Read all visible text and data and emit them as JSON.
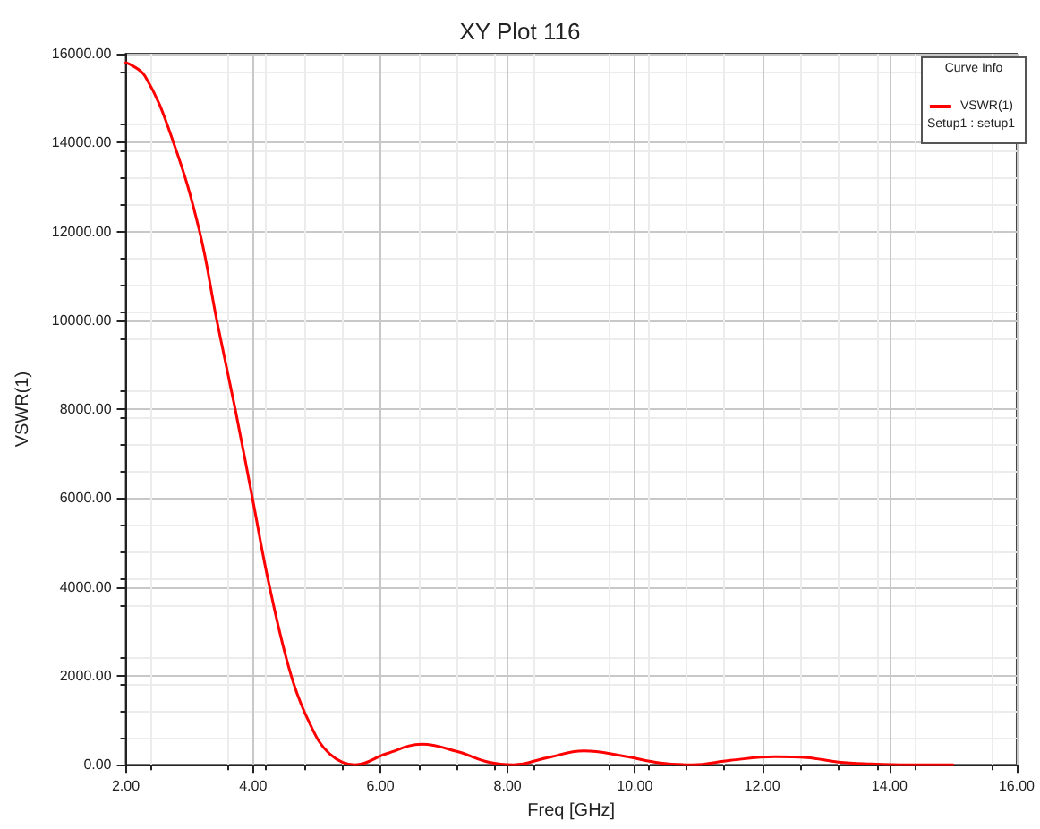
{
  "chart_data": {
    "type": "line",
    "title": "XY Plot 116",
    "xlabel": "Freq [GHz]",
    "ylabel": "VSWR(1)",
    "legend_title": "Curve Info",
    "annotations": [
      "Setup1 : setup1"
    ],
    "x": [
      2.0,
      2.3,
      2.75,
      3.16,
      3.43,
      3.72,
      3.99,
      4.26,
      4.6,
      4.9,
      5.2,
      5.6,
      6.1,
      6.65,
      7.2,
      7.7,
      8.1,
      8.6,
      9.2,
      9.8,
      10.4,
      10.9,
      11.5,
      12.2,
      12.7,
      13.2,
      13.7,
      14.3,
      15.0
    ],
    "series": [
      {
        "name": "VSWR(1)",
        "color": "#ff0000",
        "values": [
          15800,
          15500,
          14000,
          12000,
          10000,
          8000,
          6000,
          4000,
          2000,
          900,
          250,
          0,
          250,
          460,
          300,
          60,
          0,
          150,
          310,
          200,
          40,
          0,
          100,
          180,
          160,
          60,
          20,
          0,
          0
        ]
      }
    ],
    "xlim": [
      2,
      16
    ],
    "xticks": [
      {
        "value": 2,
        "label": "2.00"
      },
      {
        "value": 4,
        "label": "4.00"
      },
      {
        "value": 6,
        "label": "6.00"
      },
      {
        "value": 8,
        "label": "8.00"
      },
      {
        "value": 10,
        "label": "10.00"
      },
      {
        "value": 12,
        "label": "12.00"
      },
      {
        "value": 14,
        "label": "14.00"
      },
      {
        "value": 16,
        "label": "16.00"
      }
    ],
    "ylim": [
      0,
      16000
    ],
    "yticks": [
      {
        "value": 0,
        "label": "0.00"
      },
      {
        "value": 2000,
        "label": "2000.00"
      },
      {
        "value": 4000,
        "label": "4000.00"
      },
      {
        "value": 6000,
        "label": "6000.00"
      },
      {
        "value": 8000,
        "label": "8000.00"
      },
      {
        "value": 10000,
        "label": "10000.00"
      },
      {
        "value": 12000,
        "label": "12000.00"
      },
      {
        "value": 14000,
        "label": "14000.00"
      },
      {
        "value": 16000,
        "label": "16000.00"
      }
    ],
    "grid": true,
    "legend": "top right",
    "marker": "none",
    "line_style": "solid"
  }
}
